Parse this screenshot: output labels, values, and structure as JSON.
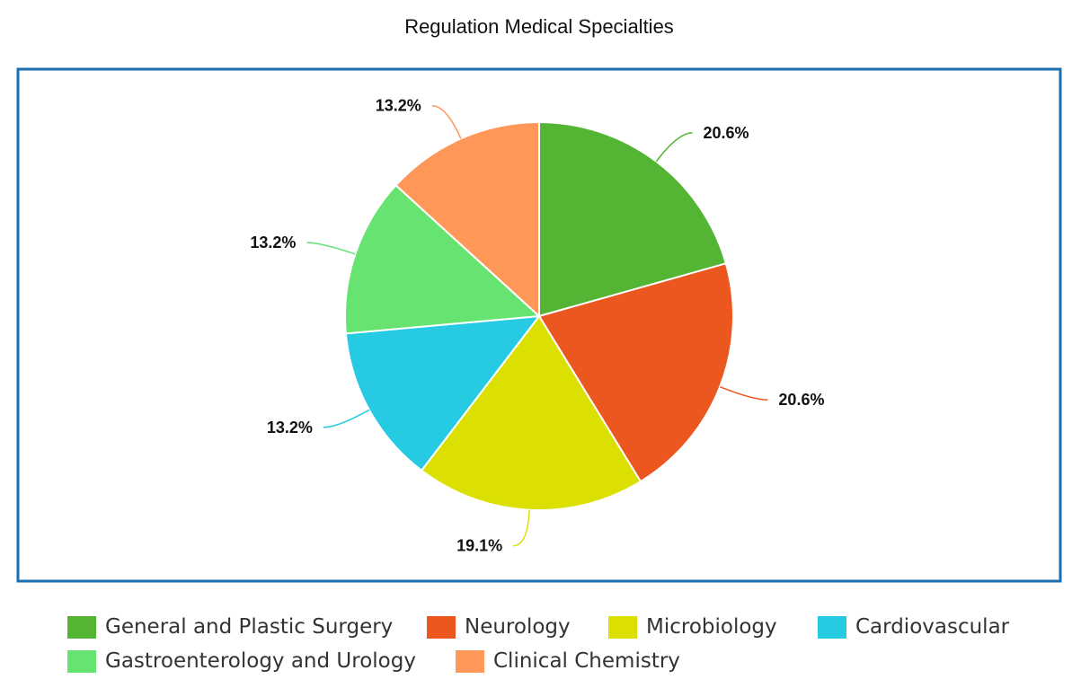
{
  "chart_data": {
    "type": "pie",
    "title": "Regulation Medical Specialties",
    "slices": [
      {
        "label": "General and Plastic Surgery",
        "percent": 20.6,
        "display": "20.6%",
        "color": "#54b434"
      },
      {
        "label": "Neurology",
        "percent": 20.6,
        "display": "20.6%",
        "color": "#ec561f"
      },
      {
        "label": "Microbiology",
        "percent": 19.1,
        "display": "19.1%",
        "color": "#dbe000"
      },
      {
        "label": "Cardiovascular",
        "percent": 13.2,
        "display": "13.2%",
        "color": "#26cbe3"
      },
      {
        "label": "Gastroenterology and Urology",
        "percent": 13.2,
        "display": "13.2%",
        "color": "#67e372"
      },
      {
        "label": "Clinical Chemistry",
        "percent": 13.2,
        "display": "13.2%",
        "color": "#fe9758"
      }
    ],
    "legend_position": "bottom",
    "frame_color": "#1a6fb0"
  }
}
